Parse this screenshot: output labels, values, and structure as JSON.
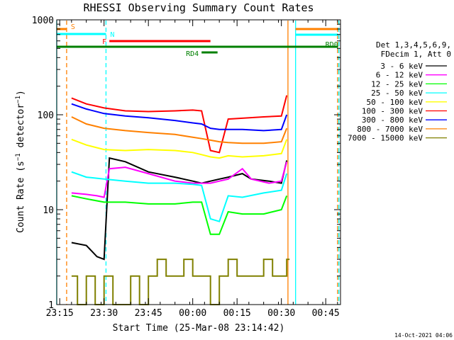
{
  "chart_data": {
    "type": "line",
    "title": "RHESSI Observing Summary Count Rates",
    "xlabel": "Start Time (25-Mar-08 23:14:42)",
    "ylabel": "Count Rate (s⁻¹ detector⁻¹)",
    "ylabel_parts": {
      "pre": "Count Rate (s",
      "sup1": "−1",
      "mid": " detector",
      "sup2": "−1",
      "post": ")"
    },
    "yscale": "log",
    "ylim": [
      1,
      1000
    ],
    "xlim": [
      23.2333,
      24.8333
    ],
    "x_ticks": [
      {
        "v": 23.25,
        "label": "23:15"
      },
      {
        "v": 23.5,
        "label": "23:30"
      },
      {
        "v": 23.75,
        "label": "23:45"
      },
      {
        "v": 24.0,
        "label": "00:00"
      },
      {
        "v": 24.25,
        "label": "00:15"
      },
      {
        "v": 24.5,
        "label": "00:30"
      },
      {
        "v": 24.75,
        "label": "00:45"
      }
    ],
    "y_ticks": [
      {
        "v": 1,
        "label": "1"
      },
      {
        "v": 10,
        "label": "10"
      },
      {
        "v": 100,
        "label": "100"
      },
      {
        "v": 1000,
        "label": "1000"
      }
    ],
    "legend_header": [
      "Det 1,3,4,5,6,9,",
      "FDecim 1, Att 0"
    ],
    "series": [
      {
        "name": "3 - 6 keV",
        "color": "#000000",
        "x": [
          23.317,
          23.4,
          23.46,
          23.5,
          23.53,
          23.62,
          23.75,
          23.9,
          24.0,
          24.05,
          24.1,
          24.15,
          24.2,
          24.28,
          24.33,
          24.43,
          24.5,
          24.53
        ],
        "y": [
          4.5,
          4.2,
          3.2,
          3.0,
          35,
          32,
          25,
          22,
          20,
          19,
          20,
          21,
          22,
          24,
          21,
          20,
          19,
          33
        ]
      },
      {
        "name": "6 - 12 keV",
        "color": "#ff00ff",
        "x": [
          23.317,
          23.4,
          23.46,
          23.5,
          23.53,
          23.62,
          23.75,
          23.9,
          24.0,
          24.05,
          24.1,
          24.15,
          24.2,
          24.28,
          24.33,
          24.43,
          24.5,
          24.53
        ],
        "y": [
          15,
          14.5,
          14,
          13.5,
          27,
          28,
          24,
          20,
          19,
          19,
          19,
          20,
          21,
          27,
          21,
          19,
          20,
          32
        ]
      },
      {
        "name": "12 - 25 keV",
        "color": "#00ff00",
        "x": [
          23.317,
          23.4,
          23.5,
          23.62,
          23.75,
          23.9,
          24.0,
          24.05,
          24.1,
          24.15,
          24.2,
          24.28,
          24.4,
          24.5,
          24.53
        ],
        "y": [
          14,
          13,
          12,
          12,
          11.5,
          11.5,
          12,
          12,
          5.5,
          5.5,
          9.5,
          9,
          9,
          10,
          14
        ]
      },
      {
        "name": "25 - 50 keV",
        "color": "#00ffff",
        "x": [
          23.317,
          23.4,
          23.5,
          23.62,
          23.75,
          23.9,
          24.0,
          24.05,
          24.1,
          24.15,
          24.2,
          24.28,
          24.4,
          24.5,
          24.53
        ],
        "y": [
          25,
          22,
          21,
          20,
          19,
          19,
          18.5,
          18,
          8,
          7.5,
          14,
          13.5,
          15,
          16,
          24
        ]
      },
      {
        "name": "50 - 100 keV",
        "color": "#ffff00",
        "x": [
          23.317,
          23.4,
          23.5,
          23.62,
          23.75,
          23.9,
          24.0,
          24.05,
          24.1,
          24.15,
          24.2,
          24.28,
          24.4,
          24.5,
          24.53
        ],
        "y": [
          55,
          48,
          43,
          42,
          43,
          42,
          40,
          38,
          36,
          35,
          37,
          36,
          37,
          39,
          55
        ]
      },
      {
        "name": "100 - 300 keV",
        "color": "#ff0000",
        "x": [
          23.317,
          23.4,
          23.5,
          23.62,
          23.75,
          23.9,
          24.0,
          24.05,
          24.1,
          24.15,
          24.2,
          24.28,
          24.4,
          24.5,
          24.53
        ],
        "y": [
          150,
          130,
          118,
          110,
          108,
          110,
          112,
          110,
          42,
          40,
          90,
          92,
          95,
          97,
          160
        ]
      },
      {
        "name": "300 - 800 keV",
        "color": "#0000ff",
        "x": [
          23.317,
          23.4,
          23.5,
          23.62,
          23.75,
          23.9,
          24.0,
          24.05,
          24.1,
          24.15,
          24.2,
          24.28,
          24.4,
          24.5,
          24.53
        ],
        "y": [
          130,
          115,
          103,
          97,
          93,
          87,
          82,
          80,
          72,
          70,
          70,
          70,
          68,
          70,
          100
        ]
      },
      {
        "name": "800 - 7000 keV",
        "color": "#ff8000",
        "x": [
          23.317,
          23.4,
          23.5,
          23.62,
          23.75,
          23.9,
          24.0,
          24.05,
          24.1,
          24.15,
          24.2,
          24.28,
          24.4,
          24.5,
          24.53
        ],
        "y": [
          95,
          80,
          72,
          68,
          65,
          62,
          58,
          56,
          54,
          52,
          51,
          50,
          50,
          52,
          72
        ]
      },
      {
        "name": "7000 - 15000 keV",
        "color": "#808000",
        "x": [
          23.317,
          23.35,
          23.4,
          23.45,
          23.5,
          23.55,
          23.6,
          23.65,
          23.7,
          23.75,
          23.8,
          23.85,
          23.9,
          23.95,
          24.0,
          24.05,
          24.1,
          24.15,
          24.2,
          24.25,
          24.3,
          24.35,
          24.4,
          24.45,
          24.5,
          24.53
        ],
        "y": [
          2,
          1,
          2,
          1,
          2,
          1,
          1,
          2,
          1,
          2,
          3,
          2,
          2,
          3,
          2,
          2,
          1,
          2,
          3,
          2,
          2,
          2,
          3,
          2,
          2,
          3
        ]
      }
    ],
    "annotations": {
      "flags": [
        {
          "label": "S",
          "color": "#ff8000",
          "x": [
            23.233,
            23.289
          ]
        },
        {
          "label": "N",
          "color": "#00ffff",
          "x": [
            23.233,
            23.511
          ]
        },
        {
          "label": "F",
          "color": "#ff0000",
          "x": [
            23.53,
            24.1
          ]
        },
        {
          "label": "RD0",
          "color": "#008000",
          "x": [
            23.233,
            24.82
          ]
        },
        {
          "label": "RD4",
          "color": "#008000",
          "x": [
            24.05,
            24.14
          ]
        }
      ],
      "vlines": [
        {
          "x": 23.233,
          "color": "#00ffff",
          "style": "solid"
        },
        {
          "x": 23.289,
          "color": "#ff8000",
          "style": "dashed"
        },
        {
          "x": 23.511,
          "color": "#00ffff",
          "style": "dashed"
        },
        {
          "x": 24.537,
          "color": "#ff8000",
          "style": "solid"
        },
        {
          "x": 24.58,
          "color": "#00ffff",
          "style": "solid"
        },
        {
          "x": 24.817,
          "color": "#ff8000",
          "style": "dashed"
        },
        {
          "x": 24.824,
          "color": "#00ffff",
          "style": "dashed"
        }
      ],
      "right_flags": [
        {
          "color": "#ff8000",
          "x": [
            24.58,
            24.82
          ]
        },
        {
          "color": "#00ffff",
          "x": [
            24.58,
            24.82
          ]
        }
      ]
    }
  },
  "footer_date": "14-Oct-2021 04:06"
}
